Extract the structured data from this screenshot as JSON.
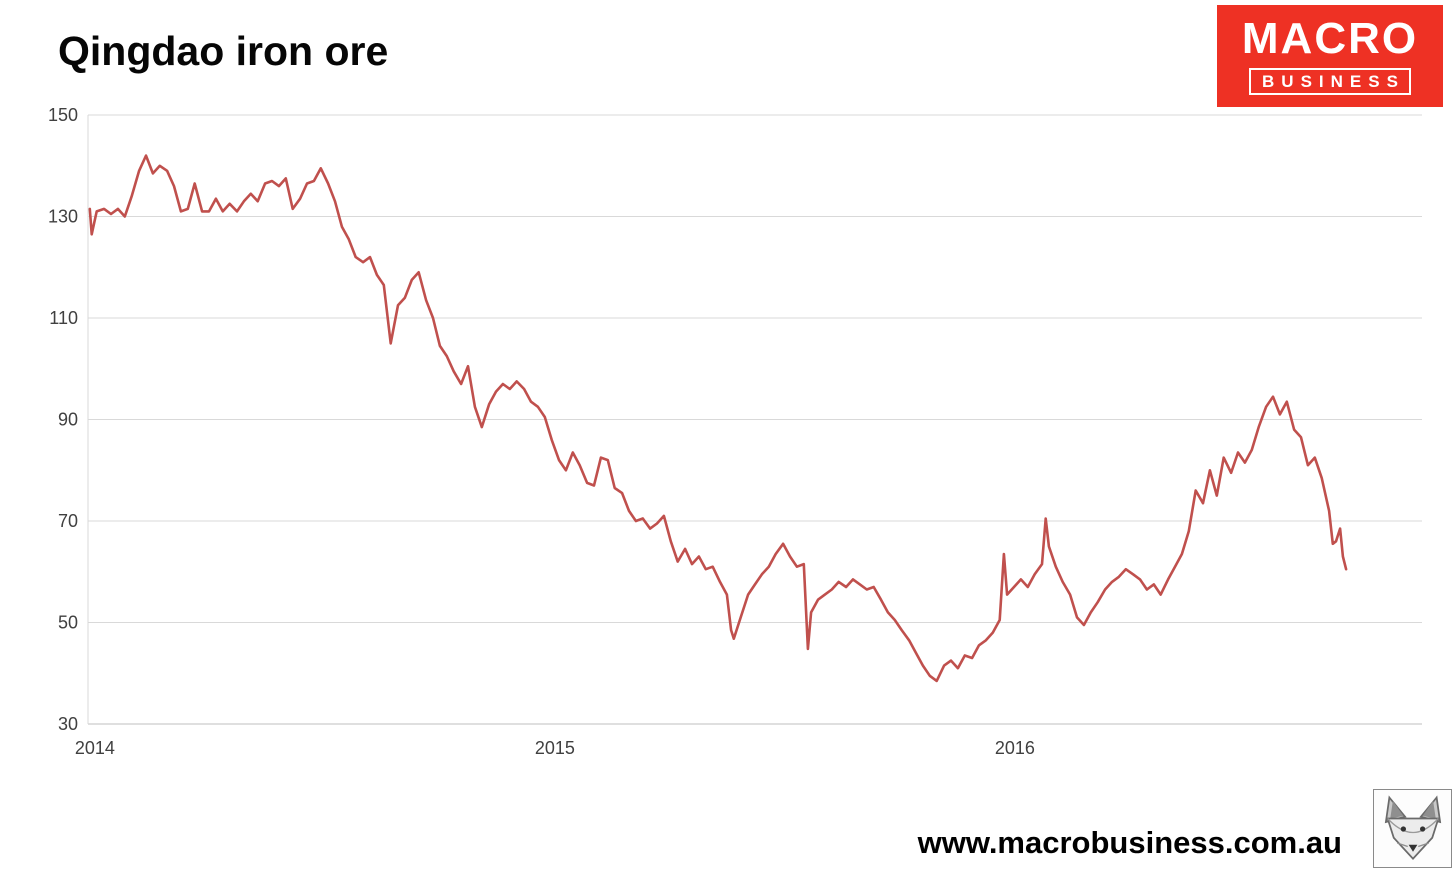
{
  "title": "Qingdao iron ore",
  "logo": {
    "line1": "MACRO",
    "line2": "BUSINESS",
    "bg_color": "#ee3124",
    "text_color": "#ffffff"
  },
  "footer": {
    "url": "www.macrobusiness.com.au"
  },
  "chart_data": {
    "type": "line",
    "title": "Qingdao iron ore",
    "series_name": "Qingdao iron ore spot price",
    "xlabel": "",
    "ylabel": "",
    "grid": true,
    "legend": false,
    "line_color": "#c0504d",
    "grid_color": "#d9d9d9",
    "axis_color": "#bfbfbf",
    "tick_color": "#404040",
    "x_range": [
      2013.985,
      2016.885
    ],
    "y_range": [
      30,
      150
    ],
    "x_ticks": [
      2014,
      2015,
      2016
    ],
    "x_tick_labels": [
      "2014",
      "2015",
      "2016"
    ],
    "y_ticks": [
      30,
      50,
      70,
      90,
      110,
      130,
      150
    ],
    "points": [
      [
        2013.989,
        131.5
      ],
      [
        2013.993,
        126.5
      ],
      [
        2014.004,
        131
      ],
      [
        2014.02,
        131.5
      ],
      [
        2014.035,
        130.5
      ],
      [
        2014.05,
        131.5
      ],
      [
        2014.065,
        130
      ],
      [
        2014.08,
        134
      ],
      [
        2014.096,
        139
      ],
      [
        2014.111,
        142
      ],
      [
        2014.126,
        138.5
      ],
      [
        2014.141,
        140
      ],
      [
        2014.157,
        139
      ],
      [
        2014.172,
        136
      ],
      [
        2014.187,
        131
      ],
      [
        2014.202,
        131.5
      ],
      [
        2014.217,
        136.5
      ],
      [
        2014.233,
        131
      ],
      [
        2014.248,
        131
      ],
      [
        2014.263,
        133.5
      ],
      [
        2014.278,
        131
      ],
      [
        2014.293,
        132.5
      ],
      [
        2014.309,
        131
      ],
      [
        2014.324,
        133
      ],
      [
        2014.339,
        134.5
      ],
      [
        2014.354,
        133
      ],
      [
        2014.37,
        136.5
      ],
      [
        2014.385,
        137
      ],
      [
        2014.4,
        136
      ],
      [
        2014.415,
        137.5
      ],
      [
        2014.43,
        131.5
      ],
      [
        2014.446,
        133.5
      ],
      [
        2014.461,
        136.5
      ],
      [
        2014.476,
        137
      ],
      [
        2014.491,
        139.5
      ],
      [
        2014.507,
        136.5
      ],
      [
        2014.522,
        133
      ],
      [
        2014.537,
        128
      ],
      [
        2014.552,
        125.5
      ],
      [
        2014.567,
        122
      ],
      [
        2014.583,
        121
      ],
      [
        2014.598,
        122
      ],
      [
        2014.613,
        118.5
      ],
      [
        2014.628,
        116.5
      ],
      [
        2014.643,
        105
      ],
      [
        2014.659,
        112.5
      ],
      [
        2014.674,
        114
      ],
      [
        2014.689,
        117.5
      ],
      [
        2014.704,
        119
      ],
      [
        2014.72,
        113.5
      ],
      [
        2014.735,
        110
      ],
      [
        2014.75,
        104.5
      ],
      [
        2014.765,
        102.5
      ],
      [
        2014.78,
        99.5
      ],
      [
        2014.796,
        97
      ],
      [
        2014.811,
        100.5
      ],
      [
        2014.826,
        92.5
      ],
      [
        2014.841,
        88.5
      ],
      [
        2014.857,
        93
      ],
      [
        2014.872,
        95.5
      ],
      [
        2014.887,
        97
      ],
      [
        2014.902,
        96
      ],
      [
        2014.917,
        97.5
      ],
      [
        2014.933,
        96
      ],
      [
        2014.948,
        93.5
      ],
      [
        2014.963,
        92.5
      ],
      [
        2014.978,
        90.5
      ],
      [
        2014.993,
        86
      ],
      [
        2015.009,
        82
      ],
      [
        2015.024,
        80
      ],
      [
        2015.039,
        83.5
      ],
      [
        2015.054,
        81
      ],
      [
        2015.07,
        77.5
      ],
      [
        2015.085,
        77
      ],
      [
        2015.1,
        82.5
      ],
      [
        2015.115,
        82
      ],
      [
        2015.13,
        76.5
      ],
      [
        2015.146,
        75.5
      ],
      [
        2015.161,
        72
      ],
      [
        2015.176,
        70
      ],
      [
        2015.191,
        70.5
      ],
      [
        2015.207,
        68.5
      ],
      [
        2015.222,
        69.5
      ],
      [
        2015.237,
        71
      ],
      [
        2015.252,
        66
      ],
      [
        2015.267,
        62
      ],
      [
        2015.283,
        64.5
      ],
      [
        2015.298,
        61.5
      ],
      [
        2015.313,
        63
      ],
      [
        2015.328,
        60.5
      ],
      [
        2015.343,
        61
      ],
      [
        2015.359,
        58
      ],
      [
        2015.374,
        55.5
      ],
      [
        2015.383,
        48.5
      ],
      [
        2015.389,
        46.8
      ],
      [
        2015.404,
        51
      ],
      [
        2015.42,
        55.5
      ],
      [
        2015.435,
        57.5
      ],
      [
        2015.45,
        59.5
      ],
      [
        2015.465,
        61
      ],
      [
        2015.48,
        63.5
      ],
      [
        2015.496,
        65.5
      ],
      [
        2015.511,
        63
      ],
      [
        2015.526,
        61
      ],
      [
        2015.541,
        61.5
      ],
      [
        2015.55,
        44.8
      ],
      [
        2015.557,
        52
      ],
      [
        2015.572,
        54.5
      ],
      [
        2015.587,
        55.5
      ],
      [
        2015.602,
        56.5
      ],
      [
        2015.617,
        58
      ],
      [
        2015.633,
        57
      ],
      [
        2015.648,
        58.5
      ],
      [
        2015.663,
        57.5
      ],
      [
        2015.678,
        56.5
      ],
      [
        2015.693,
        57
      ],
      [
        2015.709,
        54.5
      ],
      [
        2015.724,
        52
      ],
      [
        2015.739,
        50.5
      ],
      [
        2015.754,
        48.5
      ],
      [
        2015.77,
        46.5
      ],
      [
        2015.785,
        44
      ],
      [
        2015.8,
        41.5
      ],
      [
        2015.815,
        39.5
      ],
      [
        2015.83,
        38.5
      ],
      [
        2015.846,
        41.5
      ],
      [
        2015.861,
        42.5
      ],
      [
        2015.876,
        41
      ],
      [
        2015.891,
        43.5
      ],
      [
        2015.907,
        43
      ],
      [
        2015.922,
        45.5
      ],
      [
        2015.937,
        46.5
      ],
      [
        2015.952,
        48
      ],
      [
        2015.967,
        50.5
      ],
      [
        2015.976,
        63.5
      ],
      [
        2015.983,
        55.5
      ],
      [
        2015.998,
        57
      ],
      [
        2016.013,
        58.5
      ],
      [
        2016.028,
        57
      ],
      [
        2016.043,
        59.5
      ],
      [
        2016.059,
        61.5
      ],
      [
        2016.067,
        70.5
      ],
      [
        2016.074,
        65
      ],
      [
        2016.089,
        61
      ],
      [
        2016.104,
        58
      ],
      [
        2016.12,
        55.5
      ],
      [
        2016.135,
        51
      ],
      [
        2016.15,
        49.5
      ],
      [
        2016.165,
        52
      ],
      [
        2016.18,
        54
      ],
      [
        2016.196,
        56.5
      ],
      [
        2016.211,
        58
      ],
      [
        2016.226,
        59
      ],
      [
        2016.241,
        60.5
      ],
      [
        2016.257,
        59.5
      ],
      [
        2016.272,
        58.5
      ],
      [
        2016.287,
        56.5
      ],
      [
        2016.302,
        57.5
      ],
      [
        2016.317,
        55.5
      ],
      [
        2016.333,
        58.5
      ],
      [
        2016.348,
        61
      ],
      [
        2016.363,
        63.5
      ],
      [
        2016.378,
        68
      ],
      [
        2016.393,
        76
      ],
      [
        2016.409,
        73.5
      ],
      [
        2016.424,
        80
      ],
      [
        2016.439,
        75
      ],
      [
        2016.454,
        82.5
      ],
      [
        2016.47,
        79.5
      ],
      [
        2016.485,
        83.5
      ],
      [
        2016.5,
        81.5
      ],
      [
        2016.515,
        84
      ],
      [
        2016.53,
        88.5
      ],
      [
        2016.546,
        92.5
      ],
      [
        2016.561,
        94.5
      ],
      [
        2016.576,
        91
      ],
      [
        2016.591,
        93.5
      ],
      [
        2016.607,
        88
      ],
      [
        2016.622,
        86.5
      ],
      [
        2016.637,
        81
      ],
      [
        2016.652,
        82.5
      ],
      [
        2016.667,
        78.5
      ],
      [
        2016.683,
        72
      ],
      [
        2016.691,
        65.5
      ],
      [
        2016.698,
        66
      ],
      [
        2016.707,
        68.5
      ],
      [
        2016.713,
        63
      ],
      [
        2016.72,
        60.5
      ]
    ]
  }
}
